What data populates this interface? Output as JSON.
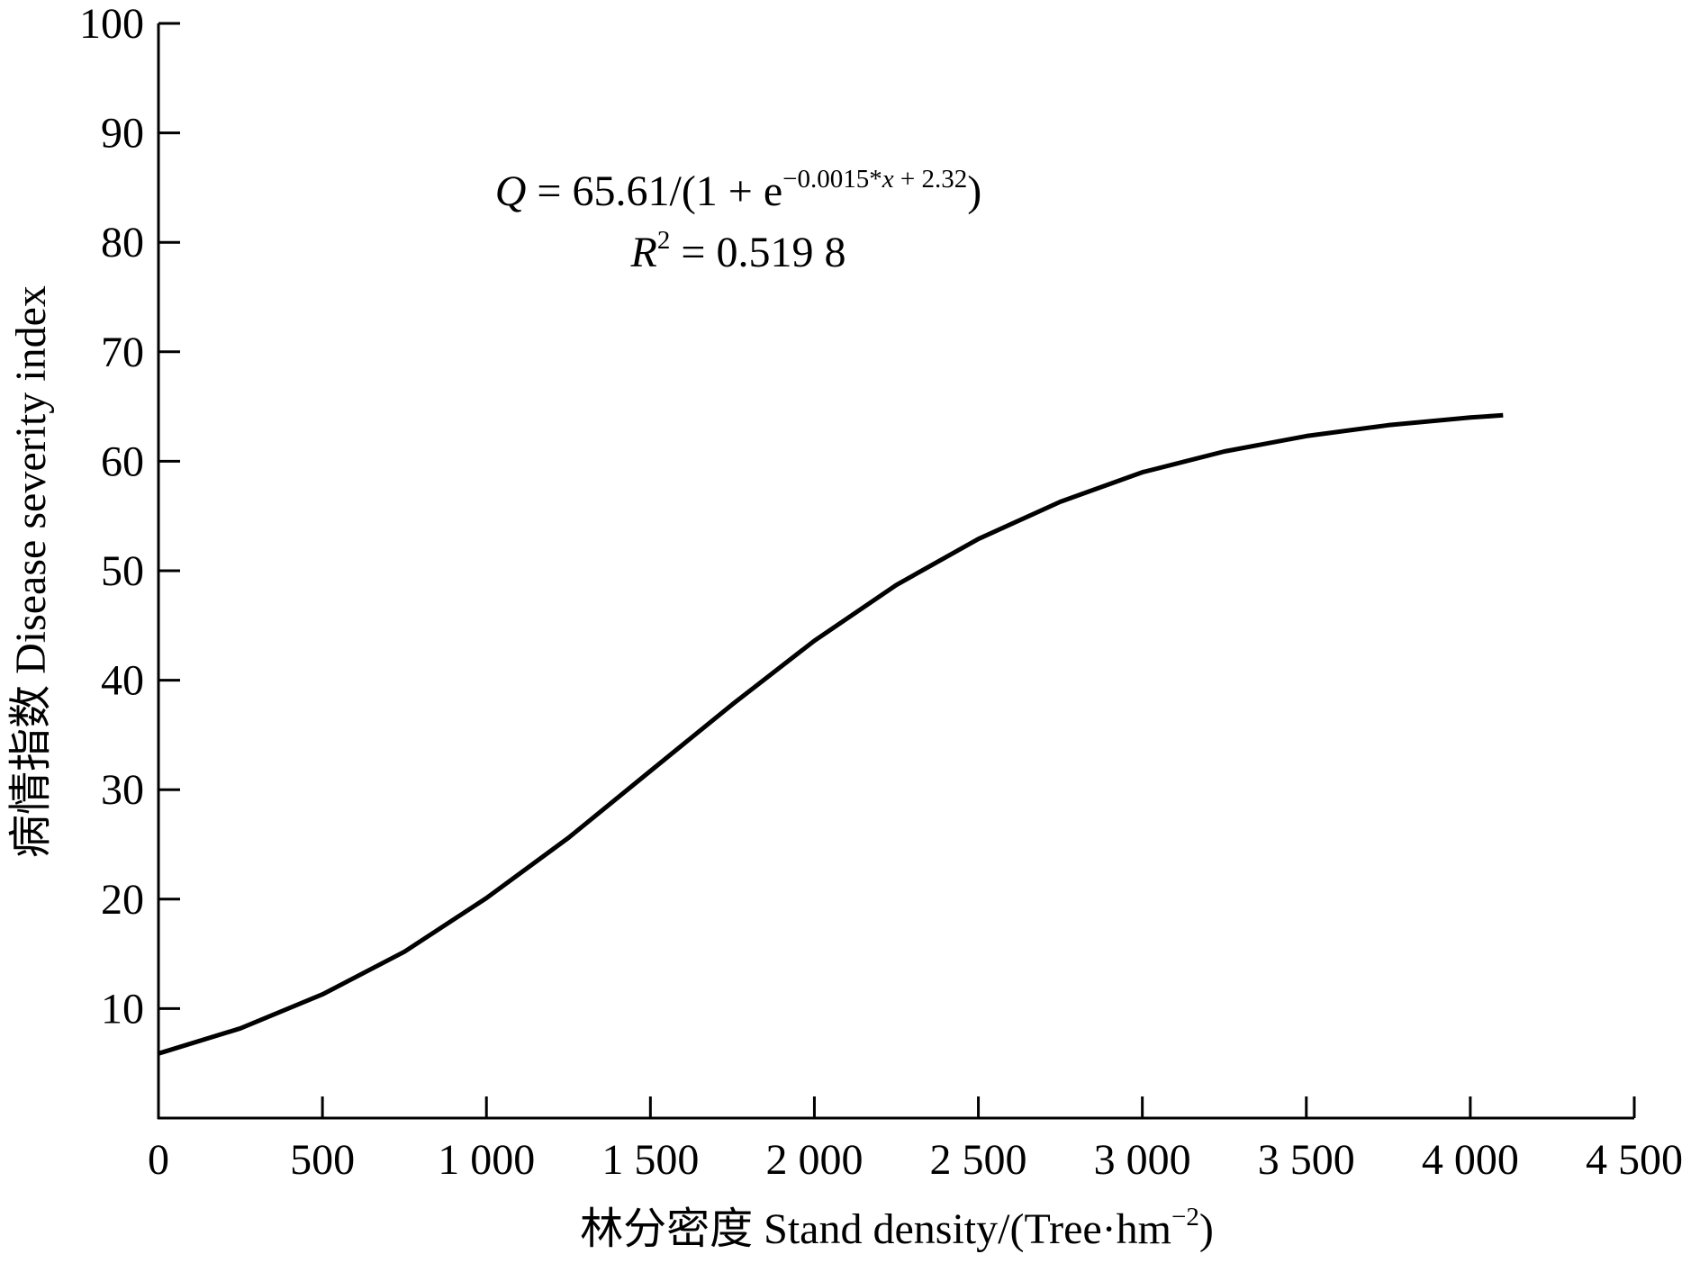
{
  "chart_data": {
    "type": "line",
    "equation": [
      "Q",
      " = 65.61/(1 + e",
      "−0.0015*",
      "x",
      " + 2.32",
      ")"
    ],
    "r_squared": [
      "R",
      "2",
      " = 0.519 8"
    ],
    "xlabel": [
      "林分密度 Stand density/(Tree·hm",
      "−2",
      ")"
    ],
    "ylabel": "病情指数  Disease severity index",
    "x": [
      0,
      250,
      500,
      750,
      1000,
      1250,
      1500,
      1750,
      2000,
      2250,
      2500,
      2750,
      3000,
      3250,
      3500,
      3750,
      4000,
      4100
    ],
    "values": [
      5.9,
      8.2,
      11.3,
      15.2,
      20.1,
      25.6,
      31.7,
      37.8,
      43.6,
      48.7,
      52.9,
      56.3,
      59.0,
      60.9,
      62.3,
      63.3,
      64.0,
      64.2
    ],
    "color": "#000000",
    "xlim": [
      0,
      4500
    ],
    "xticks": [
      0,
      500,
      {
        "value": 1000,
        "label": "1 000"
      },
      {
        "value": 1500,
        "label": "1 500"
      },
      {
        "value": 2000,
        "label": "2 000"
      },
      {
        "value": 2500,
        "label": "2 500"
      },
      {
        "value": 3000,
        "label": "3 000"
      },
      {
        "value": 3500,
        "label": "3 500"
      },
      {
        "value": 4000,
        "label": "4 000"
      },
      {
        "value": 4500,
        "label": "4 500"
      }
    ],
    "ylim": [
      0,
      100
    ],
    "yticks": [
      10,
      20,
      30,
      40,
      50,
      60,
      70,
      80,
      90,
      100
    ]
  }
}
